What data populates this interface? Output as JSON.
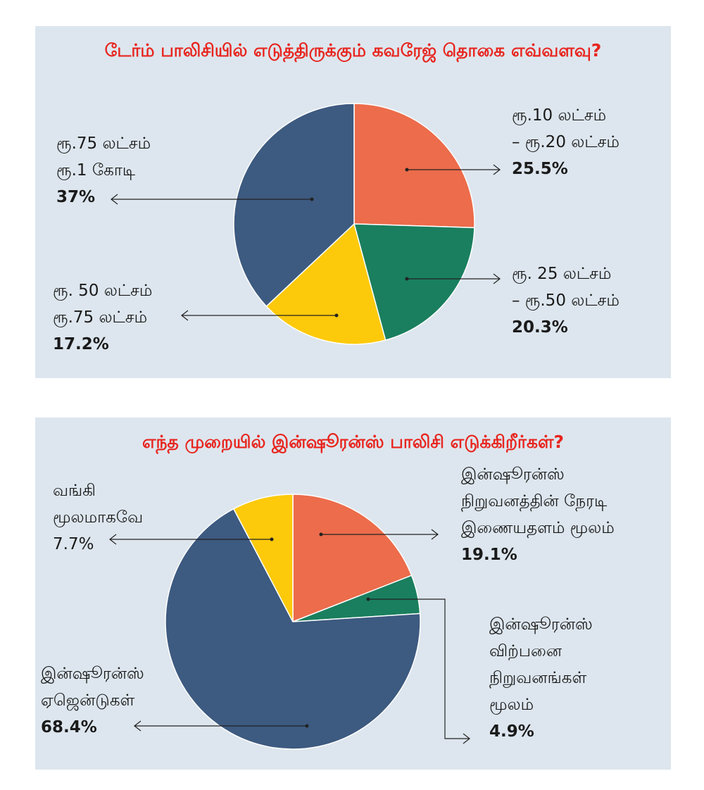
{
  "chart_data": [
    {
      "type": "pie",
      "title": "டேர்ம் பாலிசியில் எடுத்திருக்கும் கவரேஜ் தொகை எவ்வளவு?",
      "slices": [
        {
          "label_lines": [
            "ரூ.10 லட்சம்",
            "– ரூ.20 லட்சம்"
          ],
          "value_text": "25.5%",
          "value": 25.5,
          "color": "#ec6c4b"
        },
        {
          "label_lines": [
            "ரூ. 25 லட்சம்",
            "– ரூ.50 லட்சம்"
          ],
          "value_text": "20.3%",
          "value": 20.3,
          "color": "#1a7f5e"
        },
        {
          "label_lines": [
            "ரூ. 50 லட்சம்",
            "ரூ.75 லட்சம்"
          ],
          "value_text": "17.2%",
          "value": 17.2,
          "color": "#fdc90b"
        },
        {
          "label_lines": [
            "ரூ.75 லட்சம்",
            "ரூ.1 கோடி"
          ],
          "value_text": "37%",
          "value": 37,
          "color": "#3d5a80"
        }
      ]
    },
    {
      "type": "pie",
      "title": "எந்த முறையில் இன்ஷூரன்ஸ் பாலிசி எடுக்கிறீர்கள்?",
      "slices": [
        {
          "label_lines": [
            "இன்ஷூரன்ஸ்",
            "நிறுவனத்தின் நேரடி",
            "இணையதளம் மூலம்"
          ],
          "value_text": "19.1%",
          "value": 19.1,
          "color": "#ec6c4b"
        },
        {
          "label_lines": [
            "இன்ஷூரன்ஸ்",
            "விற்பனை",
            "நிறுவனங்கள்",
            "மூலம்"
          ],
          "value_text": "4.9%",
          "value": 4.9,
          "color": "#1a7f5e"
        },
        {
          "label_lines": [
            "இன்ஷூரன்ஸ்",
            "ஏஜென்டுகள்"
          ],
          "value_text": "68.4%",
          "value": 68.4,
          "color": "#3d5a80"
        },
        {
          "label_lines": [
            "வங்கி",
            "மூலமாகவே"
          ],
          "value_text": "7.7%",
          "value": 7.7,
          "color": "#fdc90b"
        }
      ]
    }
  ]
}
